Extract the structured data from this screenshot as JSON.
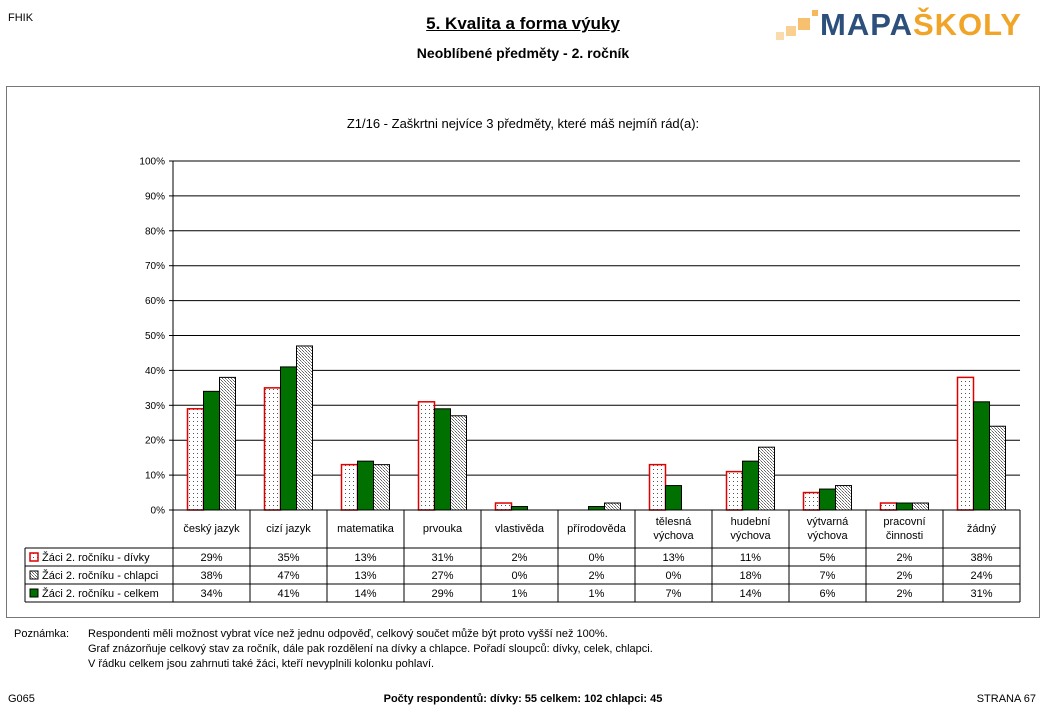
{
  "header": {
    "code": "FHIK",
    "title": "5. Kvalita a forma výuky",
    "subtitle": "Neoblíbené předměty -  2. ročník",
    "logo": {
      "part1": "MAPA",
      "part2": "ŠKOLY"
    }
  },
  "chart_data": {
    "type": "bar",
    "title": "Z1/16 - Zaškrtni nejvíce 3 předměty, které máš nejmíň rád(a):",
    "ylim": [
      0,
      100
    ],
    "y_ticks": [
      "0%",
      "10%",
      "20%",
      "30%",
      "40%",
      "50%",
      "60%",
      "70%",
      "80%",
      "90%",
      "100%"
    ],
    "categories": [
      [
        "český jazyk"
      ],
      [
        "cizí jazyk"
      ],
      [
        "matematika"
      ],
      [
        "prvouka"
      ],
      [
        "vlastivěda"
      ],
      [
        "přírodověda"
      ],
      [
        "tělesná",
        "výchova"
      ],
      [
        "hudební",
        "výchova"
      ],
      [
        "výtvarná",
        "výchova"
      ],
      [
        "pracovní",
        "činnosti"
      ],
      [
        "žádný"
      ]
    ],
    "series": [
      {
        "name": "Žáci 2. ročníku - dívky",
        "values": [
          29,
          35,
          13,
          31,
          2,
          0,
          13,
          11,
          5,
          2,
          38
        ],
        "labels": [
          "29%",
          "35%",
          "13%",
          "31%",
          "2%",
          "0%",
          "13%",
          "11%",
          "5%",
          "2%",
          "38%"
        ],
        "color": "#ffffff",
        "stroke": "#e00000",
        "pattern": "dots"
      },
      {
        "name": "Žáci 2. ročníku - chlapci",
        "values": [
          38,
          47,
          13,
          27,
          0,
          2,
          0,
          18,
          7,
          2,
          24
        ],
        "labels": [
          "38%",
          "47%",
          "13%",
          "27%",
          "0%",
          "2%",
          "0%",
          "18%",
          "7%",
          "2%",
          "24%"
        ],
        "color": "#d0d0d0",
        "stroke": "#000000",
        "pattern": "dense-dots"
      },
      {
        "name": "Žáci 2. ročníku - celkem",
        "values": [
          34,
          41,
          14,
          29,
          1,
          1,
          7,
          14,
          6,
          2,
          31
        ],
        "labels": [
          "34%",
          "41%",
          "14%",
          "29%",
          "1%",
          "1%",
          "7%",
          "14%",
          "6%",
          "2%",
          "31%"
        ],
        "color": "#007000",
        "stroke": "#000000",
        "pattern": "solid"
      }
    ],
    "bar_order": [
      0,
      2,
      1
    ],
    "grid": true,
    "legend": "table"
  },
  "notes": {
    "label": "Poznámka:",
    "lines": [
      "Respondenti měli možnost vybrat více než jednu odpověď, celkový součet může být proto vyšší než 100%.",
      "Graf znázorňuje celkový stav za ročník, dále pak rozdělení na dívky a chlapce. Pořadí sloupců: dívky, celek, chlapci.",
      "V řádku celkem jsou zahrnuti také žáci, kteří nevyplnili kolonku pohlaví."
    ]
  },
  "footer": {
    "left": "G065",
    "center": "Počty respondentů:    dívky: 55    celkem: 102    chlapci: 45",
    "right": "STRANA 67"
  }
}
